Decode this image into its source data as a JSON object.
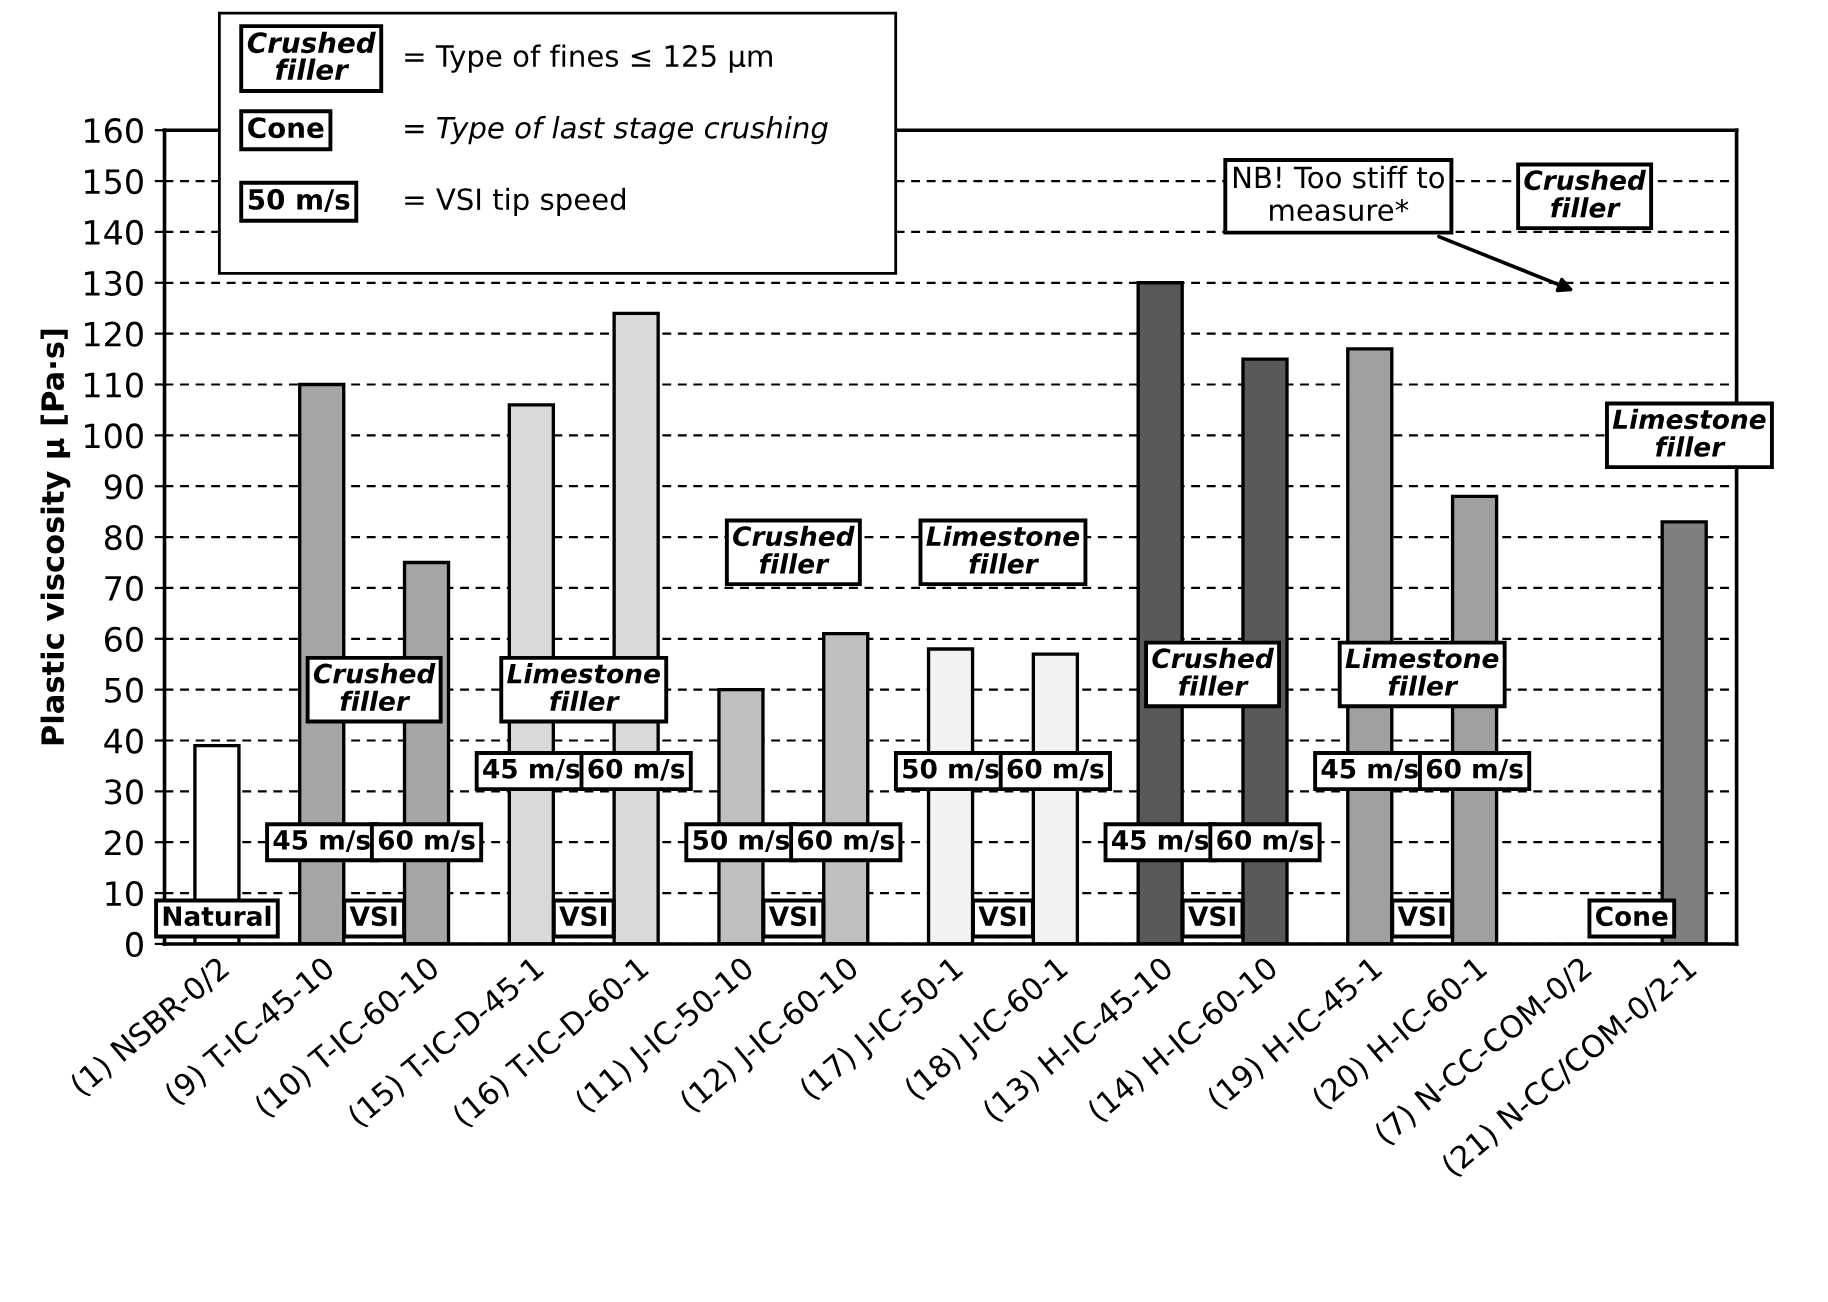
{
  "chart_data": {
    "type": "bar",
    "ylabel": "Plastic viscosity µ [Pa·s]",
    "categories": [
      "(1) NSBR-0/2",
      "(9) T-IC-45-10",
      "(10) T-IC-60-10",
      "(15) T-IC-D-45-1",
      "(16) T-IC-D-60-1",
      "(11) J-IC-50-10",
      "(12) J-IC-60-10",
      "(17) J-IC-50-1",
      "(18) J-IC-60-1",
      "(13) H-IC-45-10",
      "(14) H-IC-60-10",
      "(19) H-IC-45-1",
      "(20) H-IC-60-1",
      "(7) N-CC-COM-0/2",
      "(21) N-CC/COM-0/2-1"
    ],
    "values": [
      39,
      110,
      75,
      106,
      124,
      50,
      61,
      58,
      57,
      130,
      115,
      117,
      88,
      null,
      83
    ],
    "colors": [
      "#ffffff",
      "#a6a6a6",
      "#a6a6a6",
      "#d9d9d9",
      "#d9d9d9",
      "#bfbfbf",
      "#bfbfbf",
      "#f2f2f2",
      "#f2f2f2",
      "#595959",
      "#595959",
      "#a0a0a0",
      "#a0a0a0",
      "#ffffff",
      "#7f7f7f"
    ],
    "ylim": [
      0,
      160
    ],
    "yticks": [
      0,
      10,
      20,
      30,
      40,
      50,
      60,
      70,
      80,
      90,
      100,
      110,
      120,
      130,
      140,
      150,
      160
    ],
    "grid": "y",
    "annotations": [
      "Crushed\nfiller",
      "= Type of fines ≤ 125 µm",
      "Cone",
      "= Type of last stage crushing",
      "50 m/s",
      "= VSI tip speed",
      "Natural",
      "VSI",
      "45 m/s",
      "60 m/s",
      "Crushed\nfiller",
      "VSI",
      "45 m/s",
      "60 m/s",
      "Limestone\nfiller",
      "VSI",
      "50 m/s",
      "60 m/s",
      "Crushed\nfiller",
      "VSI",
      "50 m/s",
      "60 m/s",
      "Limestone\nfiller",
      "VSI",
      "45 m/s",
      "60 m/s",
      "Crushed\nfiller",
      "VSI",
      "45 m/s",
      "60 m/s",
      "Limestone\nfiller",
      "Crushed\nfiller",
      "NB! Too stiff to\nmeasure*",
      "Cone",
      "Limestone\nfiller"
    ]
  }
}
